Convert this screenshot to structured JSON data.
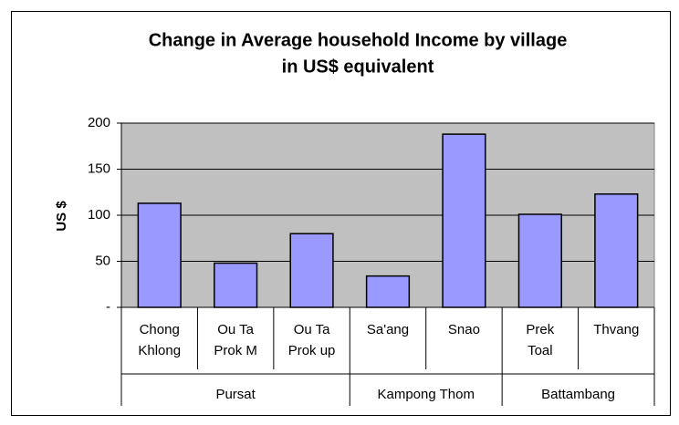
{
  "chart_data": {
    "type": "bar",
    "title": [
      "Change in Average household Income by village",
      "in US$ equivalent"
    ],
    "y_label": "US $",
    "categories": [
      "Chong Khlong",
      "Ou Ta Prok M",
      "Ou Ta Prok up",
      "Sa'ang",
      "Snao",
      "Prek Toal",
      "Thvang"
    ],
    "category_groups": [
      "Pursat",
      "Pursat",
      "Pursat",
      "Kampong Thom",
      "Kampong Thom",
      "Battambang",
      "Battambang"
    ],
    "values": [
      113,
      48,
      80,
      34,
      188,
      101,
      123
    ],
    "color": "#9999ff",
    "ylim": [
      0,
      200
    ],
    "yticks": [
      {
        "value": 0,
        "label": "-"
      },
      50,
      100,
      150,
      200
    ],
    "grid": true
  }
}
